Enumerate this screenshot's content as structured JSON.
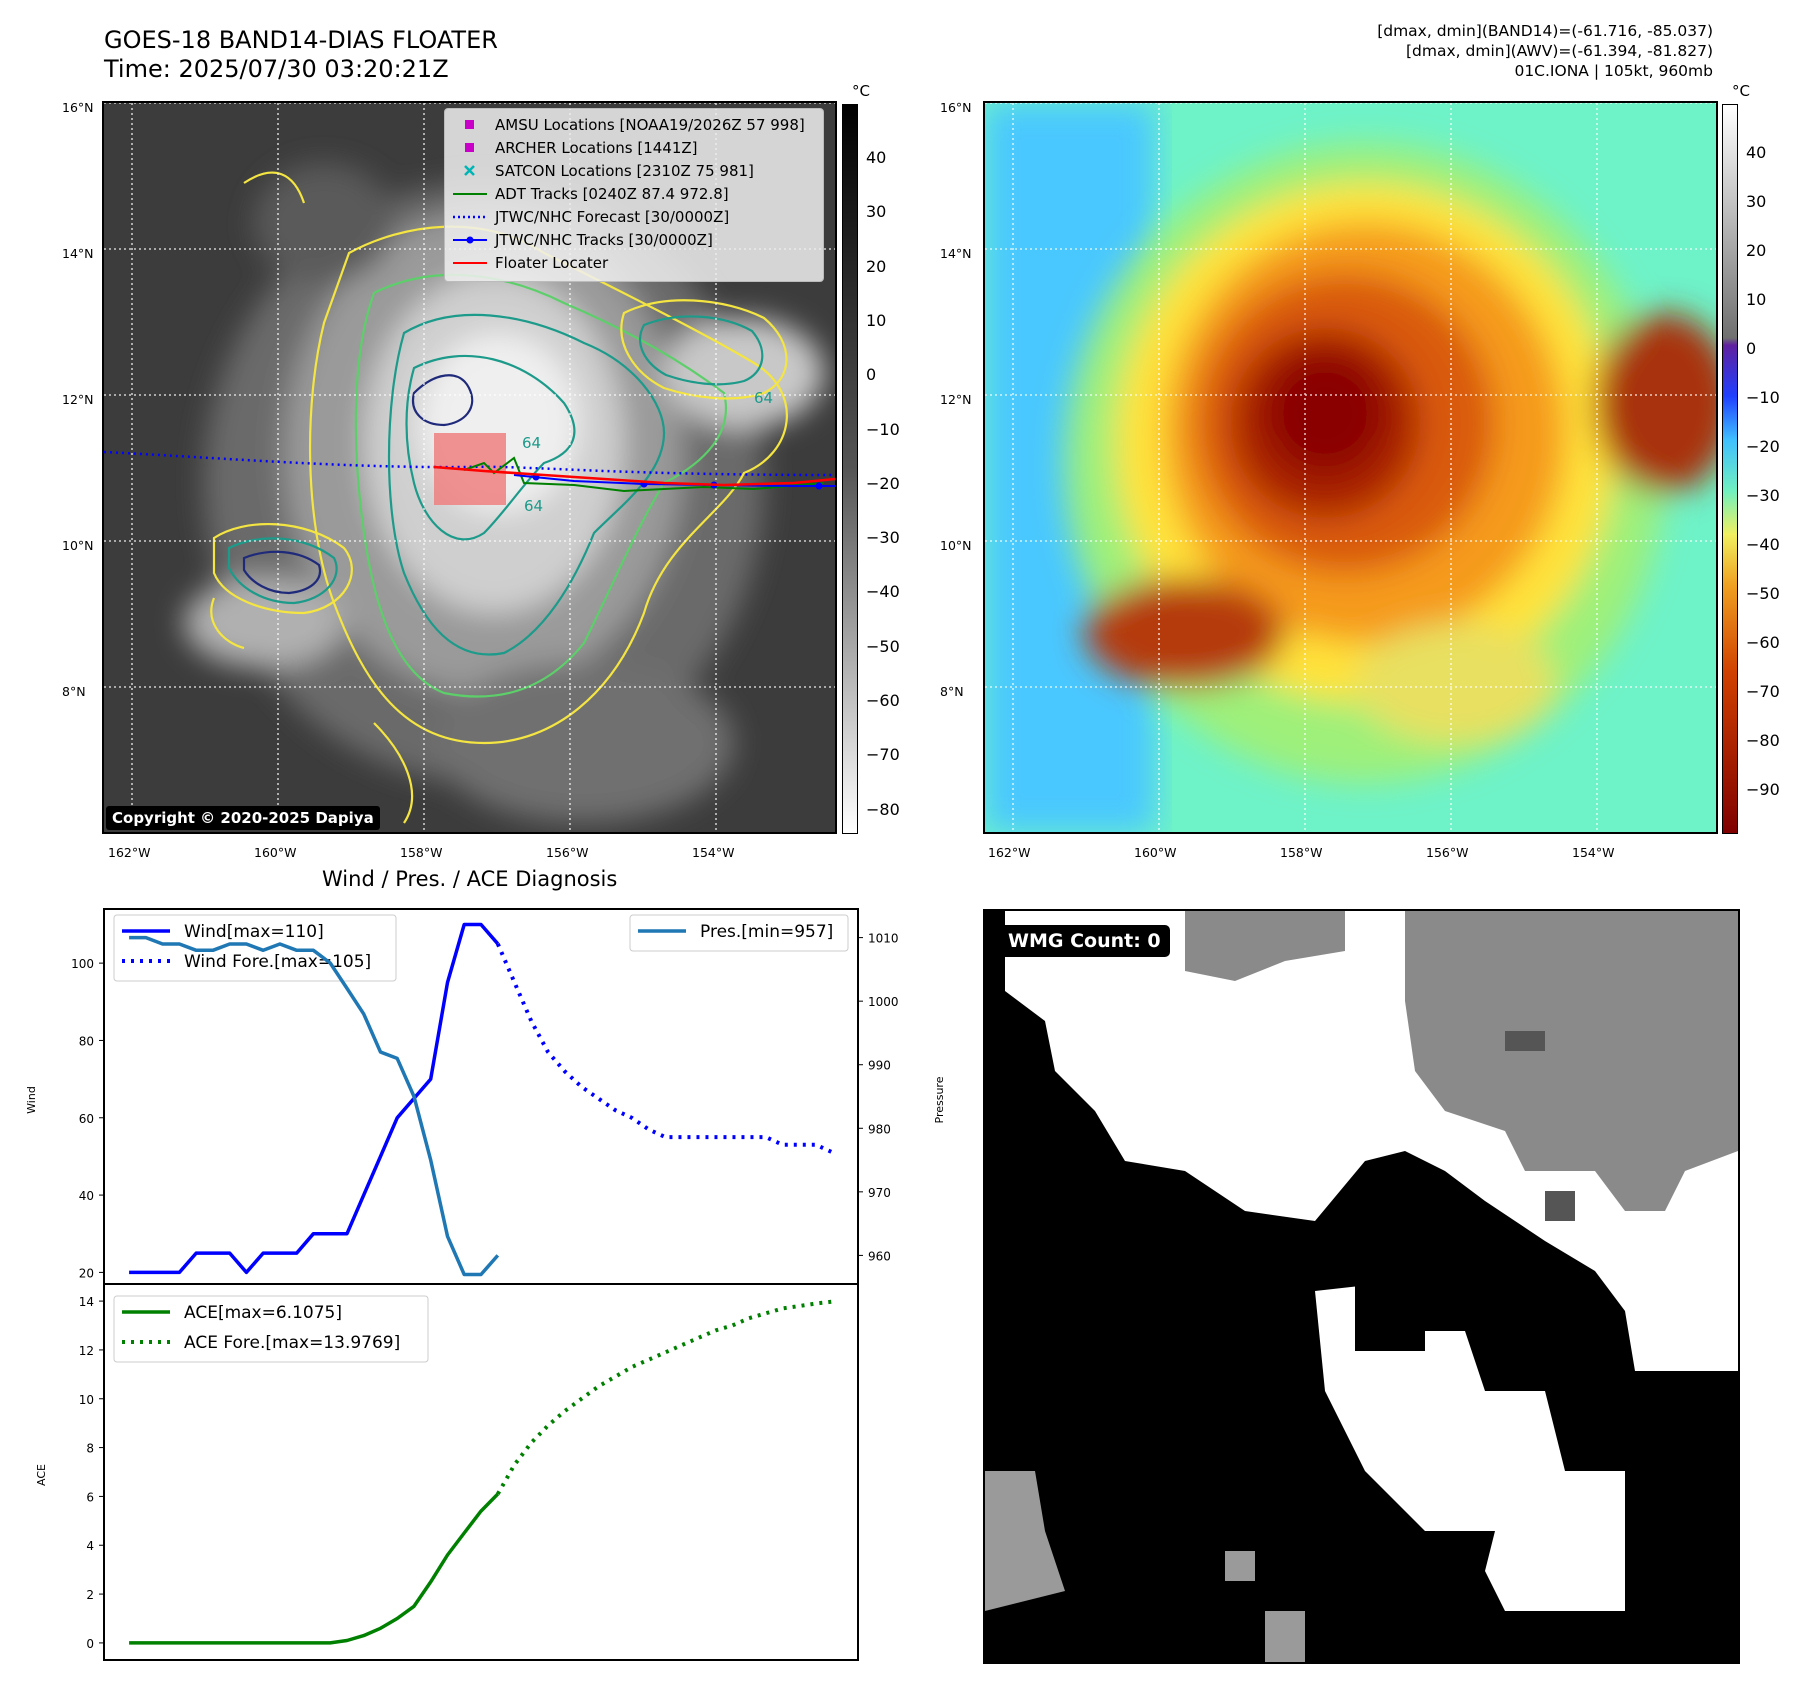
{
  "header": {
    "title_line1": "GOES-18 BAND14-DIAS FLOATER",
    "title_line2": "Time: 2025/07/30 03:20:21Z",
    "right_line1": "[dmax, dmin](BAND14)=(-61.716, -85.037)",
    "right_line2": "[dmax, dmin](AWV)=(-61.394, -81.827)",
    "right_line3": "01C.IONA | 105kt, 960mb"
  },
  "maps": {
    "lat_labels": [
      "16°N",
      "14°N",
      "12°N",
      "10°N",
      "8°N"
    ],
    "lon_labels": [
      "162°W",
      "160°W",
      "158°W",
      "156°W",
      "154°W"
    ],
    "unit": "°C",
    "cbar_left_ticks": [
      "40",
      "30",
      "20",
      "10",
      "0",
      "−10",
      "−20",
      "−30",
      "−40",
      "−50",
      "−60",
      "−70",
      "−80"
    ],
    "cbar_right_ticks": [
      "40",
      "30",
      "20",
      "10",
      "0",
      "−10",
      "−20",
      "−30",
      "−40",
      "−50",
      "−60",
      "−70",
      "−80",
      "−90"
    ],
    "copyright": "Copyright © 2020-2025 Dapiya",
    "contour_labels": [
      "64",
      "64",
      "64"
    ],
    "colors": {
      "bg_dark": "#3c3c3c",
      "contour_yellow": "#f4e542",
      "contour_green": "#5dcf6a",
      "contour_teal": "#1c9a8a",
      "contour_navy": "#1f2a7a",
      "floater": "#f08080",
      "track_red": "#ff0000",
      "track_blue": "#0000ff",
      "adt_green": "#008000"
    }
  },
  "legend_left": {
    "items": [
      {
        "label": "AMSU Locations [NOAA19/2026Z 57 998]",
        "color": "#c800c8",
        "marker": "square"
      },
      {
        "label": "ARCHER Locations [1441Z]",
        "color": "#c800c8",
        "marker": "square"
      },
      {
        "label": "SATCON Locations [2310Z 75 981]",
        "color": "#00b4b4",
        "marker": "x"
      },
      {
        "label": "ADT Tracks [0240Z 87.4 972.8]",
        "color": "#008000",
        "marker": "line"
      },
      {
        "label": "JTWC/NHC Forecast [30/0000Z]",
        "color": "#0000ff",
        "marker": "dotted"
      },
      {
        "label": "JTWC/NHC Tracks [30/0000Z]",
        "color": "#0000ff",
        "marker": "line-dot"
      },
      {
        "label": "Floater Locater",
        "color": "#ff0000",
        "marker": "line"
      }
    ]
  },
  "diag": {
    "title": "Wind / Pres. / ACE Diagnosis",
    "wind_ylabel": "Wind",
    "pres_ylabel": "Pressure",
    "ace_ylabel": "ACE",
    "wind_ticks": [
      "100",
      "80",
      "60",
      "40",
      "20"
    ],
    "pres_ticks": [
      "1010",
      "1000",
      "990",
      "980",
      "970",
      "960"
    ],
    "ace_ticks": [
      "14",
      "12",
      "10",
      "8",
      "6",
      "4",
      "2",
      "0"
    ],
    "legend_wind": "Wind[max=110]",
    "legend_wind_fore": "Wind Fore.[max=105]",
    "legend_pres": "Pres.[min=957]",
    "legend_ace": "ACE[max=6.1075]",
    "legend_ace_fore": "ACE Fore.[max=13.9769]"
  },
  "wmg": {
    "label": "WMG Count: 0"
  },
  "chart_data": {
    "type": "line",
    "title": "Wind / Pres. / ACE Diagnosis",
    "x": [
      0,
      1,
      2,
      3,
      4,
      5,
      6,
      7,
      8,
      9,
      10,
      11,
      12,
      13,
      14,
      15,
      16,
      17,
      18,
      19,
      20,
      21,
      22,
      23,
      24,
      25,
      26,
      27,
      28,
      29,
      30,
      31,
      32,
      33,
      34,
      35,
      36,
      37,
      38,
      39,
      40,
      41,
      42
    ],
    "series": [
      {
        "name": "Wind[max=110]",
        "axis": "wind",
        "color": "#0000ff",
        "style": "solid",
        "x": [
          0,
          1,
          2,
          3,
          4,
          5,
          6,
          7,
          8,
          9,
          10,
          11,
          12,
          13,
          14,
          15,
          16,
          17,
          18,
          19,
          20,
          21,
          22
        ],
        "values": [
          20,
          20,
          20,
          20,
          25,
          25,
          25,
          20,
          25,
          25,
          25,
          30,
          30,
          30,
          40,
          50,
          60,
          65,
          70,
          95,
          110,
          110,
          105
        ]
      },
      {
        "name": "Wind Fore.[max=105]",
        "axis": "wind",
        "color": "#0000ff",
        "style": "dotted",
        "x": [
          22,
          23,
          24,
          25,
          26,
          27,
          28,
          29,
          30,
          31,
          32,
          33,
          34,
          35,
          36,
          37,
          38,
          39,
          40,
          41,
          42
        ],
        "values": [
          105,
          95,
          85,
          77,
          72,
          68,
          65,
          62,
          60,
          57,
          55,
          55,
          55,
          55,
          55,
          55,
          55,
          53,
          53,
          53,
          51
        ]
      },
      {
        "name": "Pres.[min=957]",
        "axis": "pressure",
        "color": "#1f77b4",
        "style": "solid",
        "x": [
          0,
          1,
          2,
          3,
          4,
          5,
          6,
          7,
          8,
          9,
          10,
          11,
          12,
          13,
          14,
          15,
          16,
          17,
          18,
          19,
          20,
          21,
          22
        ],
        "values": [
          1010,
          1010,
          1009,
          1009,
          1008,
          1008,
          1009,
          1009,
          1008,
          1009,
          1008,
          1008,
          1006,
          1002,
          998,
          992,
          991,
          985,
          975,
          963,
          957,
          957,
          960
        ]
      },
      {
        "name": "ACE[max=6.1075]",
        "axis": "ace",
        "color": "#008000",
        "style": "solid",
        "x": [
          0,
          1,
          2,
          3,
          4,
          5,
          6,
          7,
          8,
          9,
          10,
          11,
          12,
          13,
          14,
          15,
          16,
          17,
          18,
          19,
          20,
          21,
          22
        ],
        "values": [
          0,
          0,
          0,
          0,
          0,
          0,
          0,
          0,
          0,
          0,
          0,
          0,
          0,
          0.1,
          0.3,
          0.6,
          1.0,
          1.5,
          2.5,
          3.6,
          4.5,
          5.4,
          6.1
        ]
      },
      {
        "name": "ACE Fore.[max=13.9769]",
        "axis": "ace",
        "color": "#008000",
        "style": "dotted",
        "x": [
          22,
          23,
          24,
          25,
          26,
          27,
          28,
          29,
          30,
          31,
          32,
          33,
          34,
          35,
          36,
          37,
          38,
          39,
          40,
          41,
          42
        ],
        "values": [
          6.1,
          7.3,
          8.2,
          8.9,
          9.5,
          10.0,
          10.5,
          10.9,
          11.3,
          11.6,
          11.9,
          12.2,
          12.5,
          12.8,
          13.0,
          13.3,
          13.5,
          13.7,
          13.8,
          13.9,
          13.98
        ]
      }
    ],
    "wind_ylim": [
      17,
      114
    ],
    "pressure_ylim": [
      955.5,
      1014.5
    ],
    "ace_ylim": [
      -0.7,
      14.7
    ]
  }
}
